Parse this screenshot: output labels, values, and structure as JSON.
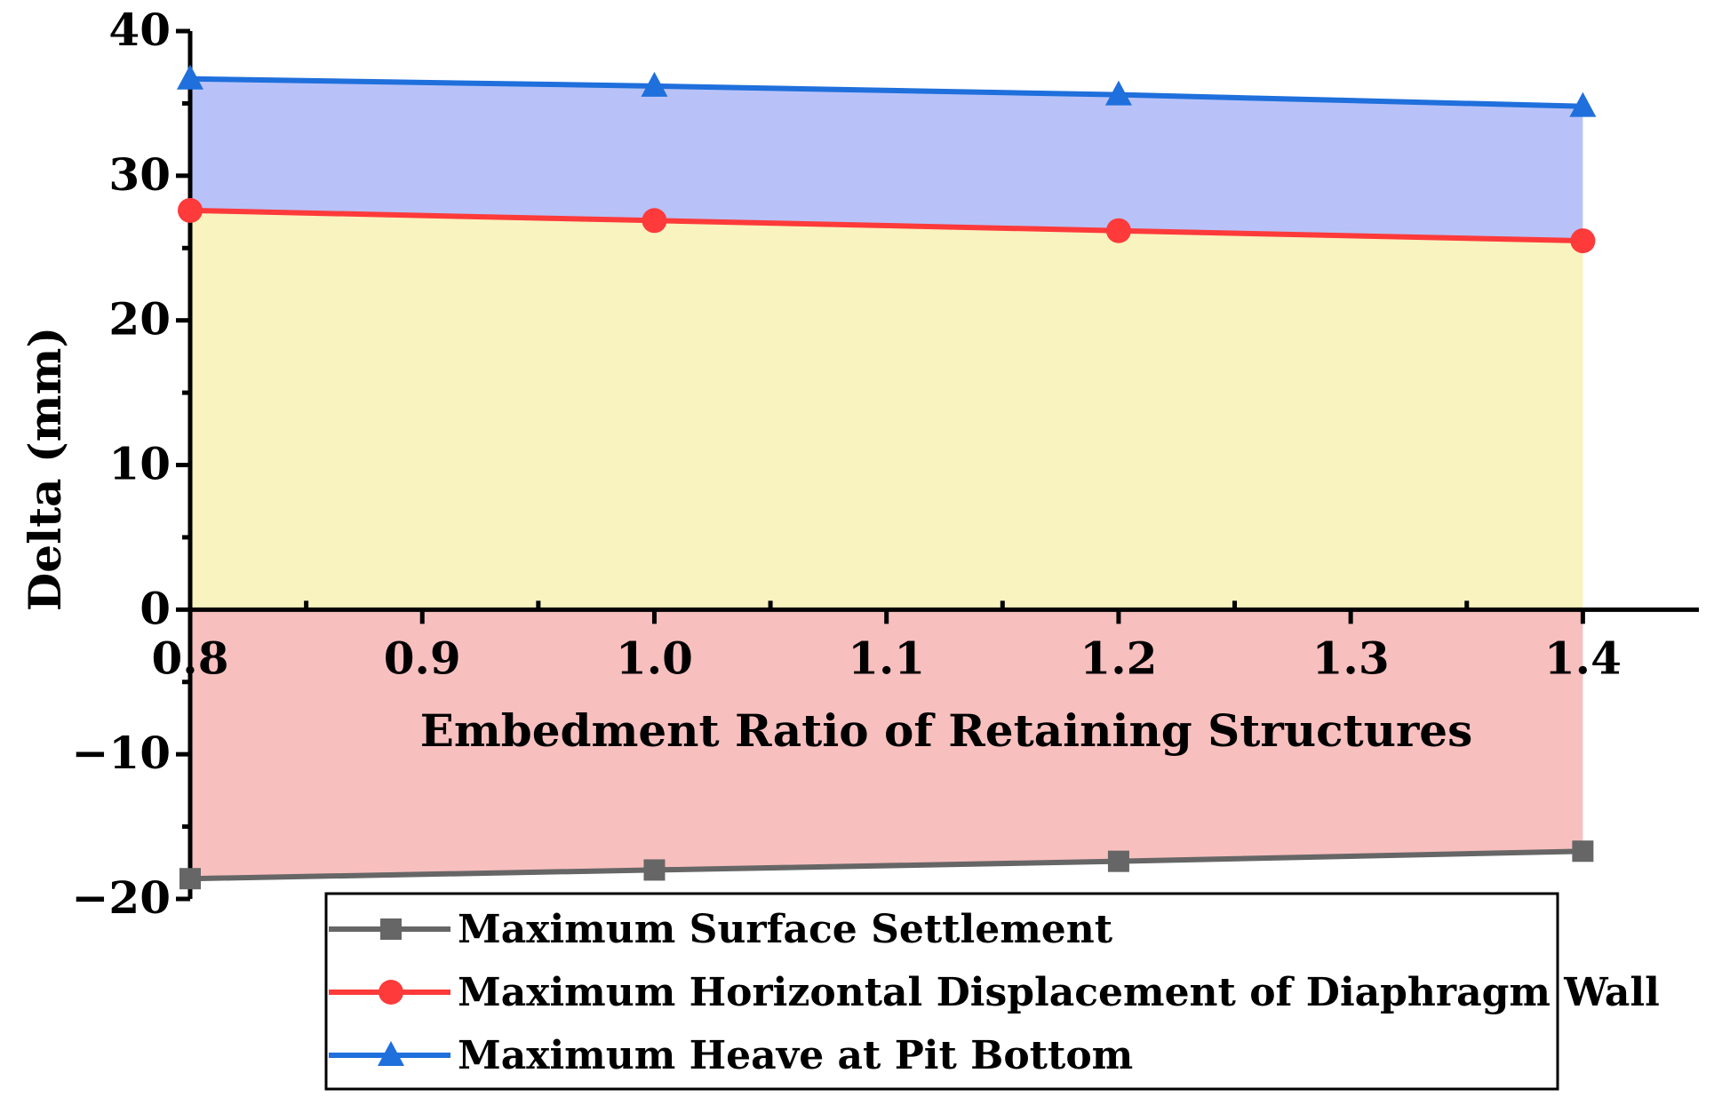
{
  "chart_data": {
    "type": "line",
    "title": "",
    "xlabel": "Embedment Ratio of Retaining Structures",
    "ylabel": "Delta (mm)",
    "xlim": [
      0.8,
      1.45
    ],
    "ylim": [
      -20,
      40
    ],
    "x_ticks": [
      0.8,
      0.9,
      1.0,
      1.1,
      1.2,
      1.3,
      1.4
    ],
    "x_tick_labels": [
      "0.8",
      "0.9",
      "1.0",
      "1.1",
      "1.2",
      "1.3",
      "1.4"
    ],
    "y_ticks": [
      -20,
      -10,
      0,
      10,
      20,
      30,
      40
    ],
    "y_tick_labels": [
      "−20",
      "−10",
      "0",
      "10",
      "20",
      "30",
      "40"
    ],
    "x": [
      0.8,
      1.0,
      1.2,
      1.4
    ],
    "series": [
      {
        "name": "Maximum Surface Settlement",
        "values": [
          -18.6,
          -18.0,
          -17.4,
          -16.7
        ],
        "color": "#666666",
        "fill": "#f8bfbf",
        "marker": "square"
      },
      {
        "name": "Maximum Horizontal Displacement of Diaphragm Wall",
        "values": [
          27.6,
          26.9,
          26.2,
          25.5
        ],
        "color": "#fe3a3a",
        "fill": "#f8f3bf",
        "marker": "circle"
      },
      {
        "name": "Maximum Heave at Pit Bottom",
        "values": [
          36.7,
          36.2,
          35.6,
          34.8
        ],
        "color": "#1f6fdc",
        "fill": "#b8c2f8",
        "marker": "triangle"
      }
    ],
    "grid": false,
    "legend_position": "bottom-center"
  }
}
